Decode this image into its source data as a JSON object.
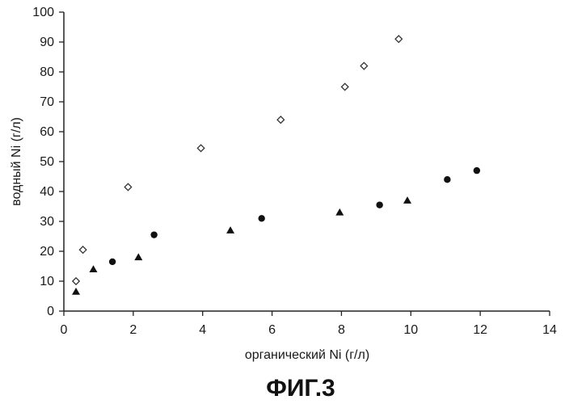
{
  "chart_data": {
    "type": "scatter",
    "title": "",
    "caption": "ФИГ.3",
    "xlabel": "органический Ni (г/л)",
    "ylabel": "водный Ni (г/л)",
    "xlim": [
      0,
      14
    ],
    "ylim": [
      0,
      100
    ],
    "xticks": [
      0,
      2,
      4,
      6,
      8,
      10,
      12,
      14
    ],
    "yticks": [
      0,
      10,
      20,
      30,
      40,
      50,
      60,
      70,
      80,
      90,
      100
    ],
    "xtick_labels": [
      "0",
      "2",
      "4",
      "6",
      "8",
      "10",
      "12",
      "14"
    ],
    "ytick_labels": [
      "0",
      "10",
      "20",
      "30",
      "40",
      "50",
      "60",
      "70",
      "80",
      "90",
      "100"
    ],
    "grid": false,
    "legend": "none",
    "series": [
      {
        "marker": "diamond",
        "color": "#333333",
        "x": [
          0.35,
          0.55,
          1.85,
          3.95,
          6.25,
          8.1,
          8.65,
          9.65
        ],
        "y": [
          10,
          20.5,
          41.5,
          54.5,
          64,
          75,
          82,
          91
        ]
      },
      {
        "marker": "circle",
        "color": "#111111",
        "x": [
          1.4,
          2.6,
          5.7,
          9.1,
          11.05,
          11.9
        ],
        "y": [
          16.5,
          25.5,
          31,
          35.5,
          44,
          47
        ]
      },
      {
        "marker": "triangle",
        "color": "#111111",
        "x": [
          0.35,
          0.85,
          2.15,
          4.8,
          7.95,
          9.9
        ],
        "y": [
          6.5,
          14,
          18,
          27,
          33,
          37
        ]
      }
    ]
  }
}
